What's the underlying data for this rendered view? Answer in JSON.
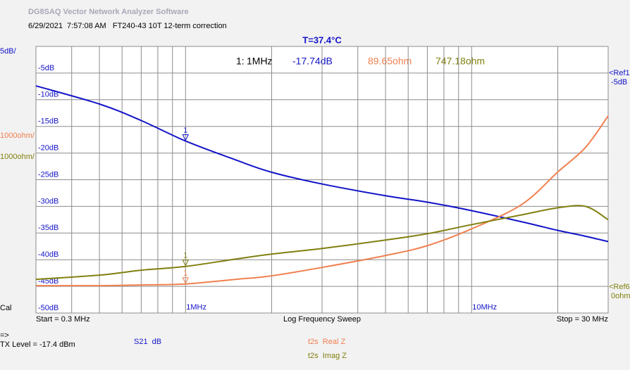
{
  "window": {
    "title": "DG8SAQ Vector Network Analyzer Software",
    "info": "6/29/2021  7:57:08 AM   FT240-43 10T 12-term correction"
  },
  "chart_data": {
    "type": "line",
    "title": "T=37.4°C",
    "log_x": true,
    "grid": true,
    "xlim": [
      0.3,
      30
    ],
    "xticks": [
      {
        "value": 1,
        "label": "1MHz"
      },
      {
        "value": 10,
        "label": "10MHz"
      }
    ],
    "x_minor_grid": [
      0.4,
      0.5,
      0.6,
      0.7,
      0.8,
      0.9,
      2,
      3,
      4,
      5,
      6,
      7,
      8,
      9,
      20
    ],
    "ylim": [
      -50,
      0
    ],
    "yticks": [
      {
        "value": -5,
        "label": "-5dB"
      },
      {
        "value": -10,
        "label": "-10dB"
      },
      {
        "value": -15,
        "label": "-15dB"
      },
      {
        "value": -20,
        "label": "-20dB"
      },
      {
        "value": -25,
        "label": "-25dB"
      },
      {
        "value": -30,
        "label": "-30dB"
      },
      {
        "value": -35,
        "label": "-35dB"
      },
      {
        "value": -40,
        "label": "-40dB"
      },
      {
        "value": -45,
        "label": "-45dB"
      },
      {
        "value": -50,
        "label": "-50dB"
      }
    ],
    "y2lim": [
      -1000,
      9000
    ],
    "x": [
      0.3,
      0.5,
      0.7,
      1,
      1.5,
      2,
      3,
      5,
      7,
      10,
      15,
      20,
      25,
      30
    ],
    "series": [
      {
        "name": "S21  dB",
        "color": "#1414c8",
        "values": [
          -7.4,
          -10.8,
          -13.9,
          -17.74,
          -21.3,
          -23.6,
          -25.8,
          -28.0,
          -29.2,
          -30.8,
          -32.9,
          -34.5,
          -35.6,
          -36.6
        ]
      },
      {
        "name": "t2s  Real Z",
        "color": "#f08050",
        "axis": "y2",
        "values": [
          26,
          26,
          53,
          89.65,
          263,
          395,
          710,
          1158,
          1526,
          2158,
          3079,
          4289,
          5211,
          6395
        ]
      },
      {
        "name": "t2s  Imag Z",
        "color": "#808010",
        "axis": "y2",
        "values": [
          263,
          421,
          605,
          747.18,
          1026,
          1211,
          1421,
          1737,
          1974,
          2316,
          2684,
          2947,
          3000,
          2500
        ]
      }
    ],
    "marker_index": 3,
    "marker_label": "1",
    "marker_readout": {
      "id": "1:",
      "freq": "1MHz",
      "s21": "-17.74dB",
      "real": "89.65ohm",
      "imag": "747.18ohm"
    },
    "scale_labels": {
      "db": "5dB/",
      "real": "1000ohm/",
      "imag": "1000ohm/",
      "cal": "Cal"
    },
    "ref_labels": {
      "ref1": "<Ref1",
      "ref1_value": "-5dB",
      "ref6": "<Ref6",
      "ref6_value": "0ohm"
    },
    "start": "Start = 0.3 MHz",
    "sweep": "Log Frequency Sweep",
    "stop": "Stop = 30 MHz",
    "arrow": "=>",
    "tx_level": "TX Level = -17.4 dBm"
  }
}
